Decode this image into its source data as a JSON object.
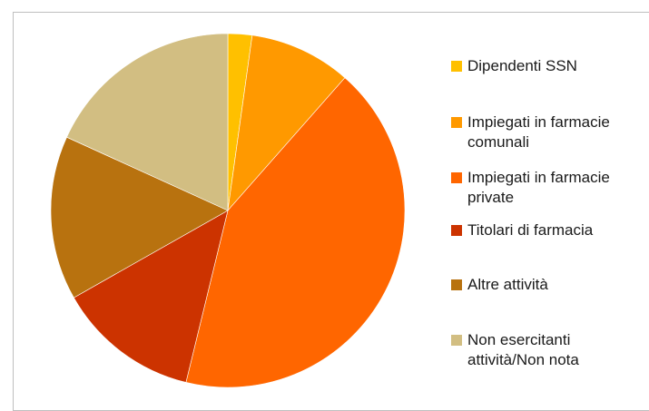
{
  "chart_data": {
    "type": "pie",
    "title": "",
    "start_angle_deg": 0,
    "direction": "clockwise",
    "legend_position": "right",
    "slices": [
      {
        "label": "Dipendenti SSN",
        "value": 2.2,
        "color": "#FFC000"
      },
      {
        "label": "Impiegati in farmacie\ncomunali",
        "value": 9.3,
        "color": "#FF9900"
      },
      {
        "label": "Impiegati in farmacie\nprivate",
        "value": 42.3,
        "color": "#FF6600"
      },
      {
        "label": "Titolari di farmacia",
        "value": 13.0,
        "color": "#CC3300"
      },
      {
        "label": "Altre attività",
        "value": 15.0,
        "color": "#B8720F"
      },
      {
        "label": "Non esercitanti\nattività/Non nota",
        "value": 18.2,
        "color": "#D2BE82"
      }
    ]
  }
}
